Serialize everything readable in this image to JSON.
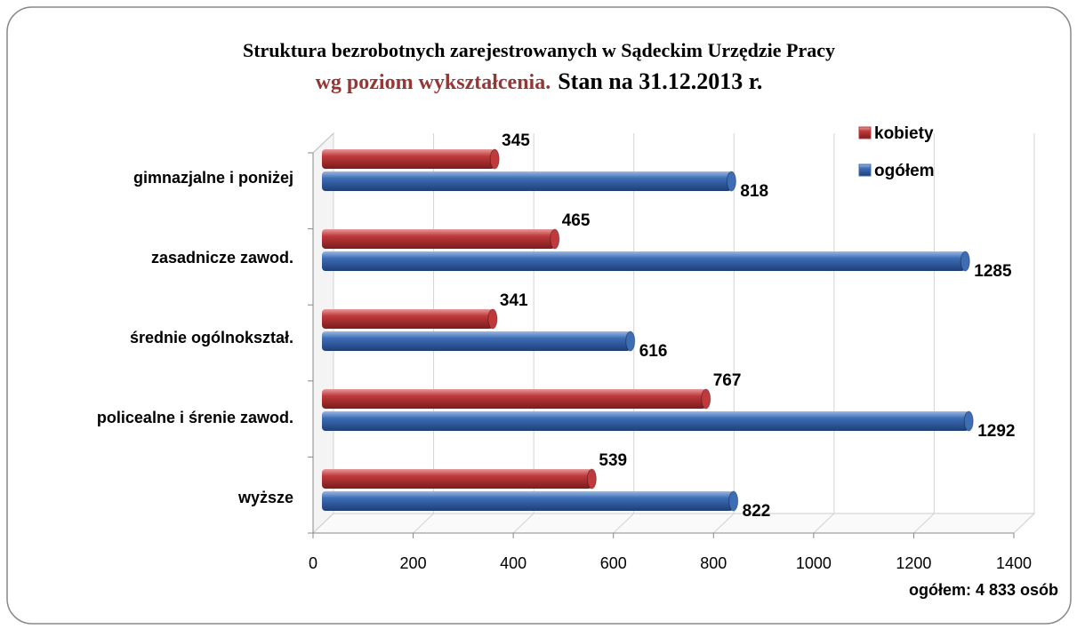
{
  "chart_data": {
    "type": "bar",
    "orientation": "horizontal",
    "title": "Struktura bezrobotnych zarejestrowanych w Sądeckim Urzędzie Pracy",
    "subtitle": [
      "wg  poziom wykształcenia.",
      "Stan na 31.12.2013 r."
    ],
    "categories": [
      "gimnazjalne i poniżej",
      "zasadnicze zawod.",
      "średnie ogólnokształ.",
      "policealne i śrenie zawod.",
      "wyższe"
    ],
    "series": [
      {
        "name": "kobiety",
        "color": "#c0393b",
        "values": [
          345,
          465,
          341,
          767,
          539
        ]
      },
      {
        "name": "ogółem",
        "color": "#3d6db5",
        "values": [
          818,
          1285,
          616,
          1292,
          822
        ]
      }
    ],
    "xlim": [
      0,
      1400
    ],
    "xticks": [
      0,
      200,
      400,
      600,
      800,
      1000,
      1200,
      1400
    ],
    "grid": true,
    "legend": "top-right",
    "annotation": "ogółem: 4 833 osób"
  }
}
